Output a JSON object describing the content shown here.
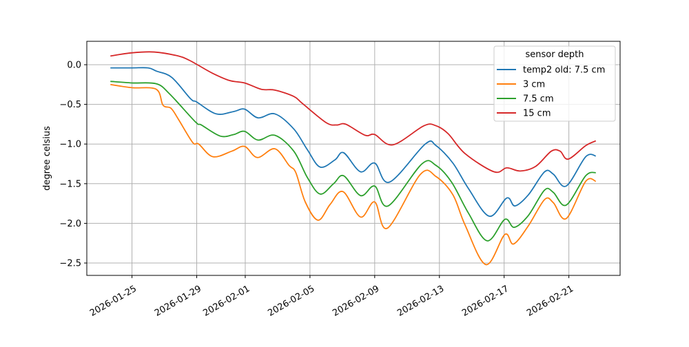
{
  "chart_data": {
    "type": "line",
    "title": "",
    "xlabel": "",
    "ylabel": "degree celsius",
    "xlim": [
      "2026-01-22 05:00",
      "2026-02-24 04:00"
    ],
    "ylim": [
      -2.656,
      0.295
    ],
    "grid": true,
    "legend": {
      "title": "sensor depth",
      "placement": "top-right"
    },
    "xticks": [
      "2026-01-25",
      "2026-01-29",
      "2026-02-01",
      "2026-02-05",
      "2026-02-09",
      "2026-02-13",
      "2026-02-17",
      "2026-02-21"
    ],
    "yticks": [
      0.0,
      -0.5,
      -1.0,
      -1.5,
      -2.0,
      -2.5
    ],
    "ytick_labels": [
      "0.0",
      "−0.5",
      "−1.0",
      "−1.5",
      "−2.0",
      "−2.5"
    ],
    "series": [
      {
        "name": "temp2 old: 7.5 cm",
        "color": "#1f77b4",
        "x": [
          "2026-01-23 16:00",
          "2026-01-25 00:00",
          "2026-01-26 00:00",
          "2026-01-26 12:00",
          "2026-01-27 11:00",
          "2026-01-28 15:00",
          "2026-01-29 00:00",
          "2026-01-30 05:00",
          "2026-01-31 07:00",
          "2026-01-31 23:00",
          "2026-02-01 19:00",
          "2026-02-02 20:00",
          "2026-02-04 00:00",
          "2026-02-04 20:00",
          "2026-02-05 15:00",
          "2026-02-06 13:00",
          "2026-02-07 02:00",
          "2026-02-08 03:00",
          "2026-02-09 00:00",
          "2026-02-09 22:00",
          "2026-02-12 03:00",
          "2026-02-12 19:00",
          "2026-02-13 20:00",
          "2026-02-14 19:00",
          "2026-02-16 02:00",
          "2026-02-17 04:00",
          "2026-02-17 16:00",
          "2026-02-18 12:00",
          "2026-02-19 12:00",
          "2026-02-20 01:00",
          "2026-02-20 20:00",
          "2026-02-22 01:00",
          "2026-02-22 16:00"
        ],
        "y": [
          -0.04,
          -0.04,
          -0.04,
          -0.08,
          -0.16,
          -0.43,
          -0.47,
          -0.62,
          -0.59,
          -0.56,
          -0.67,
          -0.62,
          -0.81,
          -1.07,
          -1.29,
          -1.2,
          -1.11,
          -1.35,
          -1.24,
          -1.48,
          -1.0,
          -1.02,
          -1.24,
          -1.56,
          -1.91,
          -1.68,
          -1.78,
          -1.64,
          -1.35,
          -1.38,
          -1.53,
          -1.16,
          -1.15
        ]
      },
      {
        "name": "3 cm",
        "color": "#ff7f0e",
        "x": [
          "2026-01-23 16:00",
          "2026-01-25 00:00",
          "2026-01-26 12:00",
          "2026-01-26 22:00",
          "2026-01-27 10:00",
          "2026-01-27 21:00",
          "2026-01-28 18:00",
          "2026-01-29 03:00",
          "2026-01-30 00:00",
          "2026-01-31 04:00",
          "2026-01-31 23:00",
          "2026-02-01 18:00",
          "2026-02-02 20:00",
          "2026-02-03 17:00",
          "2026-02-04 03:00",
          "2026-02-04 17:00",
          "2026-02-05 12:00",
          "2026-02-06 06:00",
          "2026-02-07 01:00",
          "2026-02-08 03:00",
          "2026-02-09 00:00",
          "2026-02-09 19:00",
          "2026-02-11 20:00",
          "2026-02-12 19:00",
          "2026-02-13 20:00",
          "2026-02-14 14:00",
          "2026-02-15 21:00",
          "2026-02-17 01:00",
          "2026-02-17 14:00",
          "2026-02-18 12:00",
          "2026-02-19 12:00",
          "2026-02-20 01:00",
          "2026-02-20 20:00",
          "2026-02-22 01:00",
          "2026-02-22 16:00"
        ],
        "y": [
          -0.25,
          -0.29,
          -0.31,
          -0.51,
          -0.55,
          -0.69,
          -0.98,
          -1.0,
          -1.16,
          -1.09,
          -1.03,
          -1.17,
          -1.06,
          -1.27,
          -1.36,
          -1.73,
          -1.96,
          -1.76,
          -1.6,
          -1.92,
          -1.73,
          -2.06,
          -1.38,
          -1.41,
          -1.64,
          -2.02,
          -2.52,
          -2.14,
          -2.26,
          -2.03,
          -1.7,
          -1.74,
          -1.94,
          -1.47,
          -1.47
        ]
      },
      {
        "name": "7.5 cm",
        "color": "#2ca02c",
        "x": [
          "2026-01-23 16:00",
          "2026-01-25 00:00",
          "2026-01-26 12:00",
          "2026-01-27 08:00",
          "2026-01-28 22:00",
          "2026-01-29 07:00",
          "2026-01-30 11:00",
          "2026-01-31 07:00",
          "2026-01-31 23:00",
          "2026-02-01 19:00",
          "2026-02-02 20:00",
          "2026-02-04 00:00",
          "2026-02-04 20:00",
          "2026-02-05 15:00",
          "2026-02-06 11:00",
          "2026-02-07 02:00",
          "2026-02-08 03:00",
          "2026-02-09 00:00",
          "2026-02-09 20:00",
          "2026-02-11 22:00",
          "2026-02-12 19:00",
          "2026-02-13 18:00",
          "2026-02-14 19:00",
          "2026-02-15 23:00",
          "2026-02-17 01:00",
          "2026-02-17 15:00",
          "2026-02-18 12:00",
          "2026-02-19 12:00",
          "2026-02-20 01:00",
          "2026-02-20 20:00",
          "2026-02-22 01:00",
          "2026-02-22 16:00"
        ],
        "y": [
          -0.21,
          -0.23,
          -0.24,
          -0.37,
          -0.72,
          -0.76,
          -0.9,
          -0.88,
          -0.84,
          -0.95,
          -0.89,
          -1.09,
          -1.42,
          -1.63,
          -1.5,
          -1.4,
          -1.65,
          -1.53,
          -1.78,
          -1.25,
          -1.27,
          -1.48,
          -1.87,
          -2.22,
          -1.95,
          -2.05,
          -1.9,
          -1.58,
          -1.61,
          -1.77,
          -1.4,
          -1.36
        ]
      },
      {
        "name": "15 cm",
        "color": "#d62728",
        "x": [
          "2026-01-23 16:00",
          "2026-01-25 00:00",
          "2026-01-26 09:00",
          "2026-01-27 21:00",
          "2026-01-28 12:00",
          "2026-01-29 01:00",
          "2026-01-30 00:00",
          "2026-01-31 01:00",
          "2026-01-31 23:00",
          "2026-02-02 00:00",
          "2026-02-02 20:00",
          "2026-02-04 00:00",
          "2026-02-04 13:00",
          "2026-02-06 00:00",
          "2026-02-06 16:00",
          "2026-02-07 05:00",
          "2026-02-08 10:00",
          "2026-02-09 00:00",
          "2026-02-10 03:00",
          "2026-02-12 01:00",
          "2026-02-12 19:00",
          "2026-02-13 13:00",
          "2026-02-14 14:00",
          "2026-02-16 09:00",
          "2026-02-17 04:00",
          "2026-02-18 00:00",
          "2026-02-18 23:00",
          "2026-02-19 22:00",
          "2026-02-20 11:00",
          "2026-02-20 23:00",
          "2026-02-22 01:00",
          "2026-02-22 16:00"
        ],
        "y": [
          0.11,
          0.15,
          0.16,
          0.11,
          0.06,
          0.0,
          -0.11,
          -0.2,
          -0.23,
          -0.31,
          -0.32,
          -0.4,
          -0.49,
          -0.73,
          -0.76,
          -0.75,
          -0.89,
          -0.88,
          -1.01,
          -0.77,
          -0.77,
          -0.87,
          -1.12,
          -1.35,
          -1.3,
          -1.34,
          -1.28,
          -1.09,
          -1.09,
          -1.19,
          -1.02,
          -0.96
        ]
      }
    ]
  }
}
